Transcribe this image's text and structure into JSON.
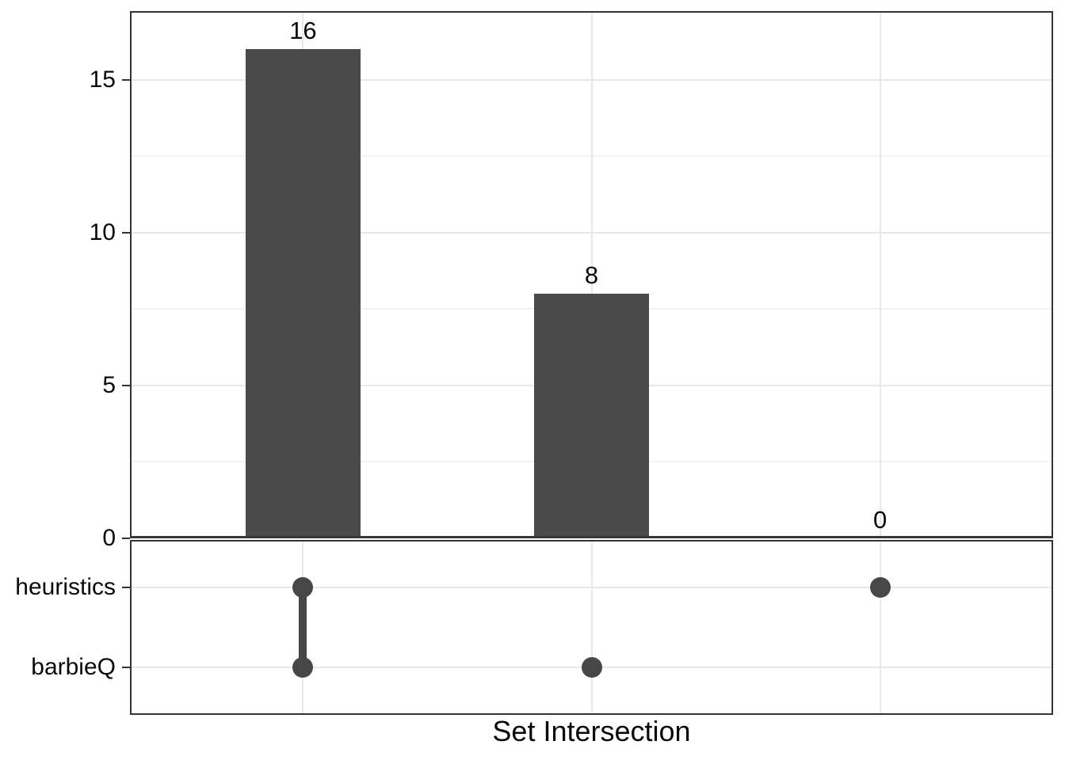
{
  "figure": {
    "x_axis_title": "Set Intersection"
  },
  "colors": {
    "bar": "#4a4a4a",
    "dot": "#474747",
    "connector": "#474747",
    "baseline": "#383838",
    "panel_border": "#333333",
    "grid_major": "#e8e8e8",
    "grid_minor": "#f3f3f3",
    "tick": "#333333",
    "text": "#0a0a0a",
    "background": "#ffffff"
  },
  "chart_data": {
    "type": "bar",
    "subtype": "upset-plot",
    "title": "",
    "xlabel": "Set Intersection",
    "ylabel": "",
    "categories": [
      "heuristics∩barbieQ",
      "barbieQ",
      "heuristics"
    ],
    "values": [
      16,
      8,
      0
    ],
    "bar_labels": [
      "16",
      "8",
      "0"
    ],
    "ylim": [
      0,
      17.2
    ],
    "yticks": [
      0,
      5,
      10,
      15
    ],
    "ytick_labels": [
      "0",
      "5",
      "10",
      "15"
    ],
    "yticks_minor": [
      2.5,
      7.5,
      12.5
    ],
    "grid": "horizontal major+minor, vertical major at intersection columns",
    "legend_position": "none",
    "matrix": {
      "rows": [
        "heuristics",
        "barbieQ"
      ],
      "columns": [
        {
          "bar_label": "16",
          "members": [
            "heuristics",
            "barbieQ"
          ]
        },
        {
          "bar_label": "8",
          "members": [
            "barbieQ"
          ]
        },
        {
          "bar_label": "0",
          "members": [
            "heuristics"
          ]
        }
      ],
      "membership_grid": [
        [
          1,
          0,
          1
        ],
        [
          1,
          1,
          0
        ]
      ]
    }
  }
}
